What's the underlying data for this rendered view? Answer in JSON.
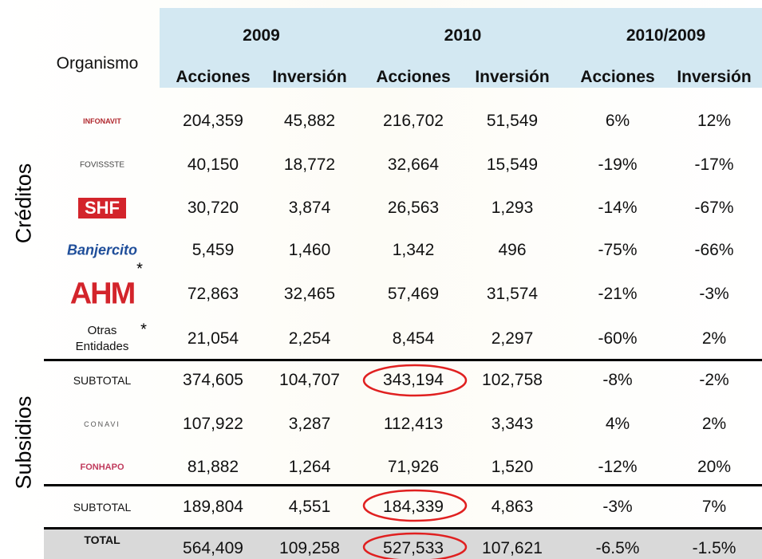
{
  "header": {
    "organismo": "Organismo",
    "years": [
      "2009",
      "2010",
      "2010/2009"
    ],
    "columns": [
      "Acciones",
      "Inversión",
      "Acciones",
      "Inversión",
      "Acciones",
      "Inversión"
    ]
  },
  "sections": [
    "Créditos",
    "Subsidios"
  ],
  "rows": [
    {
      "label": "INFONAVIT",
      "cells": [
        "204,359",
        "45,882",
        "216,702",
        "51,549",
        "6%",
        "12%"
      ]
    },
    {
      "label": "FOVISSSTE",
      "cells": [
        "40,150",
        "18,772",
        "32,664",
        "15,549",
        "-19%",
        "-17%"
      ]
    },
    {
      "label": "SHF",
      "cells": [
        "30,720",
        "3,874",
        "26,563",
        "1,293",
        "-14%",
        "-67%"
      ]
    },
    {
      "label": "Banjercito",
      "cells": [
        "5,459",
        "1,460",
        "1,342",
        "496",
        "-75%",
        "-66%"
      ]
    },
    {
      "label": "AHM",
      "note": "*",
      "cells": [
        "72,863",
        "32,465",
        "57,469",
        "31,574",
        "-21%",
        "-3%"
      ]
    },
    {
      "label": "Otras Entidades",
      "note": "*",
      "cells": [
        "21,054",
        "2,254",
        "8,454",
        "2,297",
        "-60%",
        "2%"
      ]
    },
    {
      "label": "SUBTOTAL",
      "cells": [
        "374,605",
        "104,707",
        "343,194",
        "102,758",
        "-8%",
        "-2%"
      ]
    },
    {
      "label": "CONAVI",
      "cells": [
        "107,922",
        "3,287",
        "112,413",
        "3,343",
        "4%",
        "2%"
      ]
    },
    {
      "label": "FONHAPO",
      "cells": [
        "81,882",
        "1,264",
        "71,926",
        "1,520",
        "-12%",
        "20%"
      ]
    },
    {
      "label": "SUBTOTAL",
      "cells": [
        "189,804",
        "4,551",
        "184,339",
        "4,863",
        "-3%",
        "7%"
      ]
    },
    {
      "label": "TOTAL",
      "cells": [
        "564,409",
        "109,258",
        "527,533",
        "107,621",
        "-6.5%",
        "-1.5%"
      ]
    }
  ]
}
